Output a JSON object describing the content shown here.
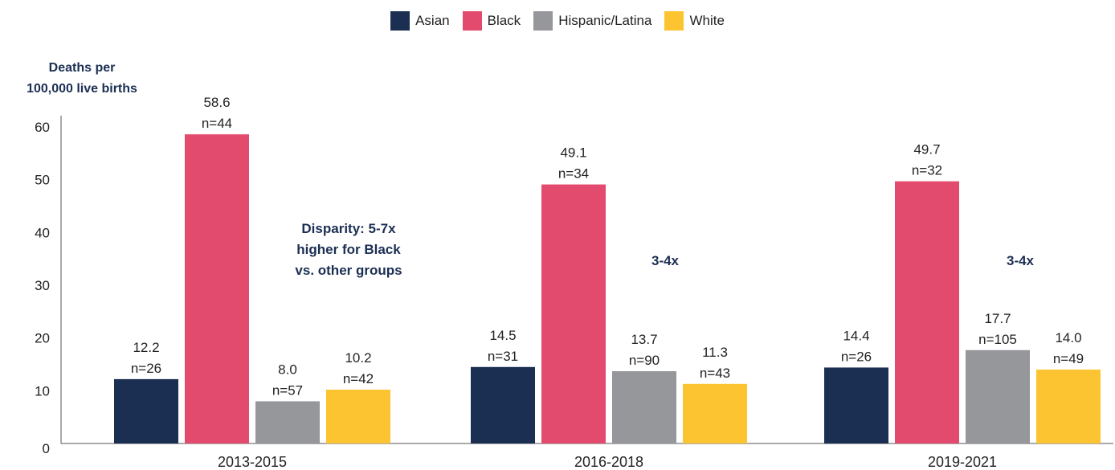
{
  "chart_data": {
    "type": "bar",
    "title": "",
    "xlabel": "",
    "ylabel_lines": [
      "Deaths per",
      "100,000 live births"
    ],
    "categories": [
      "2013-2015",
      "2016-2018",
      "2019-2021"
    ],
    "ylim": [
      0,
      60
    ],
    "yticks": [
      0,
      10,
      20,
      30,
      40,
      50,
      60
    ],
    "grid": false,
    "legend_position": "top-center",
    "series": [
      {
        "name": "Asian",
        "color": "#1b2f53",
        "values": [
          12.2,
          14.5,
          14.4
        ],
        "value_labels": [
          "12.2",
          "14.5",
          "14.4"
        ],
        "n_labels": [
          "n=26",
          "n=31",
          "n=26"
        ]
      },
      {
        "name": "Black",
        "color": "#e24a6e",
        "values": [
          58.6,
          49.1,
          49.7
        ],
        "value_labels": [
          "58.6",
          "49.1",
          "49.7"
        ],
        "n_labels": [
          "n=44",
          "n=34",
          "n=32"
        ]
      },
      {
        "name": "Hispanic/Latina",
        "color": "#96979b",
        "values": [
          8.0,
          13.7,
          17.7
        ],
        "value_labels": [
          "8.0",
          "13.7",
          "17.7"
        ],
        "n_labels": [
          "n=57",
          "n=90",
          "n=105"
        ]
      },
      {
        "name": "White",
        "color": "#fcc430",
        "values": [
          10.2,
          11.3,
          14.0
        ],
        "value_labels": [
          "10.2",
          "11.3",
          "14.0"
        ],
        "n_labels": [
          "n=42",
          "n=43",
          "n=49"
        ]
      }
    ],
    "annotations": [
      {
        "category": "2013-2015",
        "lines": [
          "Disparity: 5-7x",
          "higher for Black",
          "vs. other groups"
        ]
      },
      {
        "category": "2016-2018",
        "lines": [
          "3-4x"
        ]
      },
      {
        "category": "2019-2021",
        "lines": [
          "3-4x"
        ]
      }
    ],
    "annotation_color": "#1b2f53"
  }
}
